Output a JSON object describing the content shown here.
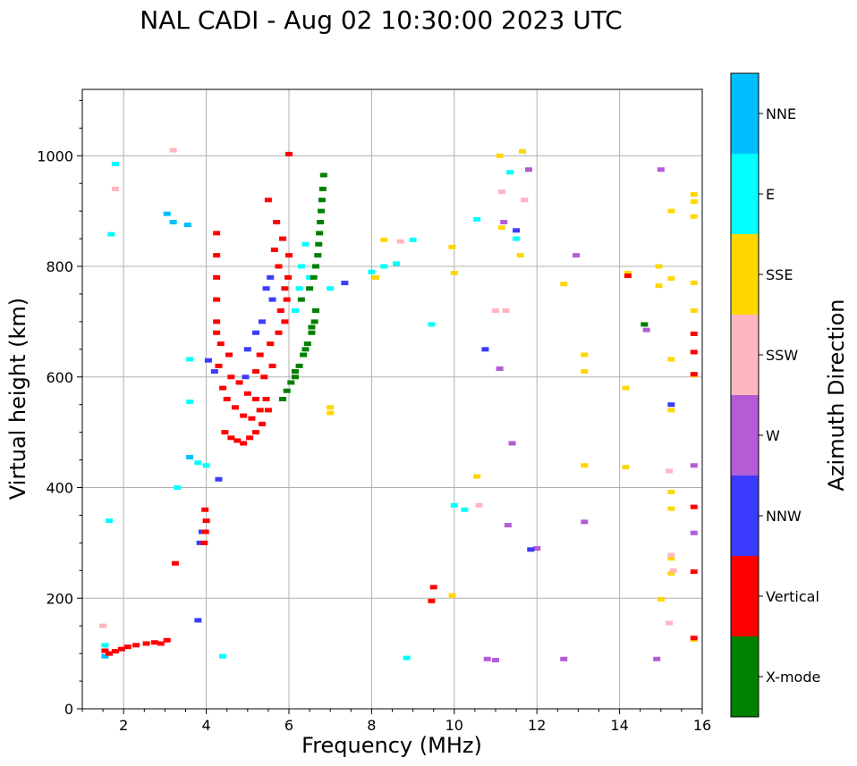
{
  "chart_data": {
    "type": "scatter",
    "title": "NAL CADI - Aug 02 10:30:00 2023 UTC",
    "xlabel": "Frequency (MHz)",
    "ylabel": "Virtual height (km)",
    "xlim": [
      1,
      16
    ],
    "ylim": [
      0,
      1120
    ],
    "xticks": [
      2,
      4,
      6,
      8,
      10,
      12,
      14,
      16
    ],
    "yticks": [
      0,
      200,
      400,
      600,
      800,
      1000
    ],
    "grid": true,
    "colorbar": {
      "label": "Azimuth Direction",
      "categories": [
        {
          "name": "X-mode",
          "color": "#008000"
        },
        {
          "name": "Vertical",
          "color": "#ff0000"
        },
        {
          "name": "NNW",
          "color": "#3b3bff"
        },
        {
          "name": "W",
          "color": "#b45cd6"
        },
        {
          "name": "SSW",
          "color": "#ffb6c1"
        },
        {
          "name": "SSE",
          "color": "#ffd700"
        },
        {
          "name": "E",
          "color": "#00ffff"
        },
        {
          "name": "NNE",
          "color": "#00bfff"
        }
      ]
    },
    "series": [
      {
        "name": "Vertical",
        "points": [
          [
            1.55,
            105
          ],
          [
            1.65,
            100
          ],
          [
            1.8,
            104
          ],
          [
            1.95,
            108
          ],
          [
            2.1,
            112
          ],
          [
            2.3,
            115
          ],
          [
            2.55,
            118
          ],
          [
            2.75,
            120
          ],
          [
            2.9,
            118
          ],
          [
            3.05,
            124
          ],
          [
            3.25,
            263
          ],
          [
            3.95,
            300
          ],
          [
            3.98,
            320
          ],
          [
            4.0,
            340
          ],
          [
            3.97,
            360
          ],
          [
            4.45,
            500
          ],
          [
            4.6,
            490
          ],
          [
            4.75,
            485
          ],
          [
            4.9,
            480
          ],
          [
            5.05,
            490
          ],
          [
            5.2,
            500
          ],
          [
            5.35,
            515
          ],
          [
            5.5,
            540
          ],
          [
            4.5,
            560
          ],
          [
            4.7,
            545
          ],
          [
            4.9,
            530
          ],
          [
            5.1,
            525
          ],
          [
            5.3,
            540
          ],
          [
            5.45,
            560
          ],
          [
            4.4,
            580
          ],
          [
            4.6,
            600
          ],
          [
            4.8,
            590
          ],
          [
            5.0,
            570
          ],
          [
            5.2,
            560
          ],
          [
            4.3,
            620
          ],
          [
            4.55,
            640
          ],
          [
            4.35,
            660
          ],
          [
            4.25,
            700
          ],
          [
            4.25,
            740
          ],
          [
            4.25,
            780
          ],
          [
            4.25,
            820
          ],
          [
            4.25,
            860
          ],
          [
            4.25,
            680
          ],
          [
            5.3,
            640
          ],
          [
            5.55,
            660
          ],
          [
            5.75,
            680
          ],
          [
            5.9,
            700
          ],
          [
            5.95,
            740
          ],
          [
            5.98,
            780
          ],
          [
            6.0,
            820
          ],
          [
            5.85,
            850
          ],
          [
            5.7,
            880
          ],
          [
            5.5,
            920
          ],
          [
            5.4,
            600
          ],
          [
            5.6,
            620
          ],
          [
            5.2,
            610
          ],
          [
            5.8,
            720
          ],
          [
            5.9,
            760
          ],
          [
            5.75,
            800
          ],
          [
            5.65,
            830
          ],
          [
            6.0,
            1003
          ],
          [
            9.5,
            220
          ],
          [
            9.45,
            195
          ],
          [
            15.8,
            128
          ],
          [
            15.8,
            248
          ],
          [
            15.8,
            365
          ],
          [
            15.8,
            605
          ],
          [
            15.8,
            645
          ],
          [
            15.8,
            678
          ],
          [
            14.2,
            783
          ]
        ]
      },
      {
        "name": "X-mode",
        "points": [
          [
            5.85,
            560
          ],
          [
            5.95,
            575
          ],
          [
            6.05,
            590
          ],
          [
            6.15,
            600
          ],
          [
            6.25,
            620
          ],
          [
            6.35,
            640
          ],
          [
            6.45,
            660
          ],
          [
            6.55,
            680
          ],
          [
            6.62,
            700
          ],
          [
            6.65,
            720
          ],
          [
            6.3,
            740
          ],
          [
            6.5,
            760
          ],
          [
            6.6,
            780
          ],
          [
            6.65,
            800
          ],
          [
            6.7,
            820
          ],
          [
            6.72,
            840
          ],
          [
            6.74,
            860
          ],
          [
            6.76,
            880
          ],
          [
            6.78,
            900
          ],
          [
            6.8,
            920
          ],
          [
            6.82,
            940
          ],
          [
            6.84,
            965
          ],
          [
            6.15,
            610
          ],
          [
            6.4,
            650
          ],
          [
            6.55,
            690
          ],
          [
            14.6,
            695
          ]
        ]
      },
      {
        "name": "NNW",
        "points": [
          [
            4.05,
            630
          ],
          [
            4.2,
            610
          ],
          [
            5.0,
            650
          ],
          [
            5.2,
            680
          ],
          [
            5.35,
            700
          ],
          [
            5.45,
            760
          ],
          [
            5.55,
            780
          ],
          [
            5.6,
            740
          ],
          [
            4.95,
            600
          ],
          [
            3.85,
            300
          ],
          [
            3.9,
            320
          ],
          [
            3.8,
            160
          ],
          [
            4.3,
            415
          ],
          [
            7.35,
            770
          ],
          [
            11.5,
            865
          ],
          [
            11.85,
            288
          ],
          [
            15.25,
            550
          ],
          [
            10.75,
            650
          ]
        ]
      },
      {
        "name": "W",
        "points": [
          [
            11.2,
            880
          ],
          [
            11.4,
            480
          ],
          [
            11.8,
            975
          ],
          [
            11.3,
            332
          ],
          [
            12.0,
            290
          ],
          [
            12.95,
            820
          ],
          [
            13.15,
            338
          ],
          [
            10.8,
            90
          ],
          [
            11.0,
            88
          ],
          [
            12.65,
            90
          ],
          [
            14.9,
            90
          ],
          [
            15.0,
            975
          ],
          [
            15.8,
            440
          ],
          [
            15.8,
            318
          ],
          [
            14.65,
            685
          ],
          [
            11.1,
            615
          ]
        ]
      },
      {
        "name": "SSW",
        "points": [
          [
            8.7,
            845
          ],
          [
            8.3,
            800
          ],
          [
            10.6,
            368
          ],
          [
            11.0,
            720
          ],
          [
            11.25,
            720
          ],
          [
            15.2,
            430
          ],
          [
            15.25,
            278
          ],
          [
            15.3,
            250
          ],
          [
            15.2,
            155
          ],
          [
            1.5,
            150
          ],
          [
            1.8,
            940
          ],
          [
            3.2,
            1010
          ],
          [
            11.7,
            920
          ],
          [
            11.15,
            935
          ]
        ]
      },
      {
        "name": "SSE",
        "points": [
          [
            7.0,
            545
          ],
          [
            7.0,
            535
          ],
          [
            8.1,
            780
          ],
          [
            8.3,
            848
          ],
          [
            9.95,
            205
          ],
          [
            9.95,
            835
          ],
          [
            10.0,
            788
          ],
          [
            10.55,
            420
          ],
          [
            11.1,
            1000
          ],
          [
            11.65,
            1008
          ],
          [
            11.15,
            870
          ],
          [
            11.6,
            820
          ],
          [
            12.65,
            768
          ],
          [
            13.15,
            640
          ],
          [
            13.15,
            610
          ],
          [
            13.15,
            440
          ],
          [
            14.15,
            580
          ],
          [
            14.15,
            437
          ],
          [
            14.2,
            788
          ],
          [
            14.95,
            800
          ],
          [
            14.95,
            765
          ],
          [
            15.25,
            900
          ],
          [
            15.25,
            778
          ],
          [
            15.25,
            632
          ],
          [
            15.25,
            540
          ],
          [
            15.25,
            392
          ],
          [
            15.25,
            362
          ],
          [
            15.25,
            272
          ],
          [
            15.25,
            245
          ],
          [
            15.0,
            198
          ],
          [
            15.8,
            930
          ],
          [
            15.8,
            917
          ],
          [
            15.8,
            890
          ],
          [
            15.8,
            770
          ],
          [
            15.8,
            720
          ],
          [
            15.8,
            603
          ],
          [
            15.8,
            125
          ]
        ]
      },
      {
        "name": "E",
        "points": [
          [
            6.4,
            840
          ],
          [
            6.3,
            800
          ],
          [
            6.5,
            780
          ],
          [
            6.25,
            760
          ],
          [
            6.15,
            720
          ],
          [
            7.0,
            760
          ],
          [
            8.0,
            790
          ],
          [
            8.3,
            800
          ],
          [
            8.6,
            805
          ],
          [
            9.0,
            848
          ],
          [
            9.45,
            695
          ],
          [
            10.0,
            368
          ],
          [
            10.25,
            360
          ],
          [
            10.55,
            885
          ],
          [
            11.35,
            970
          ],
          [
            11.5,
            850
          ],
          [
            4.0,
            440
          ],
          [
            3.3,
            400
          ],
          [
            3.6,
            555
          ],
          [
            3.6,
            632
          ],
          [
            1.8,
            985
          ],
          [
            1.7,
            858
          ],
          [
            1.65,
            340
          ],
          [
            1.55,
            115
          ],
          [
            3.8,
            445
          ],
          [
            8.85,
            92
          ],
          [
            4.4,
            95
          ]
        ]
      },
      {
        "name": "NNE",
        "points": [
          [
            3.05,
            895
          ],
          [
            3.2,
            880
          ],
          [
            3.55,
            875
          ],
          [
            1.55,
            95
          ],
          [
            3.6,
            455
          ]
        ]
      }
    ]
  }
}
